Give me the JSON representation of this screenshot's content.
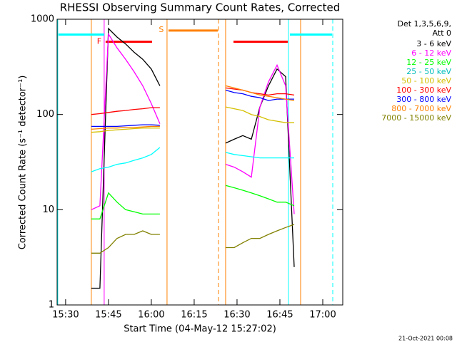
{
  "chart_data": {
    "type": "line",
    "title": "RHESSI Observing Summary Count Rates, Corrected",
    "x_label": "Start Time (04-May-12 15:27:02)",
    "y_label": "Corrected Count Rate (s⁻¹ detector⁻¹)",
    "legend_title": [
      "Det 1,3,5,6,9,",
      "Att 0"
    ],
    "footer": "21-Oct-2021 00:08",
    "log_y": true,
    "xlim": [
      927.03,
      1027
    ],
    "xticks": [
      {
        "value": 930,
        "label": "15:30"
      },
      {
        "value": 945,
        "label": "15:45"
      },
      {
        "value": 960,
        "label": "16:00"
      },
      {
        "value": 975,
        "label": "16:15"
      },
      {
        "value": 990,
        "label": "16:30"
      },
      {
        "value": 1005,
        "label": "16:45"
      },
      {
        "value": 1020,
        "label": "17:00"
      }
    ],
    "ylim": [
      1,
      1000
    ],
    "yticks": [
      1,
      10,
      100,
      1000
    ],
    "x": [
      939,
      942,
      945,
      948,
      951,
      954,
      957,
      960,
      963,
      975,
      986,
      989,
      992,
      995,
      998,
      1001,
      1004,
      1007,
      1010
    ],
    "series": [
      {
        "name": "3 - 6 keV",
        "color": "#000000",
        "values": [
          1.5,
          1.5,
          800,
          650,
          550,
          450,
          380,
          300,
          200,
          null,
          50,
          55,
          60,
          55,
          120,
          200,
          300,
          250,
          2.5
        ]
      },
      {
        "name": "6 - 12 keV",
        "color": "#ff00ff",
        "values": [
          10,
          11,
          700,
          500,
          380,
          280,
          200,
          130,
          80,
          null,
          30,
          28,
          25,
          22,
          120,
          220,
          330,
          200,
          9
        ]
      },
      {
        "name": "12 - 25 keV",
        "color": "#00ff00",
        "values": [
          8,
          8,
          15,
          12,
          10,
          9.5,
          9,
          9,
          9,
          null,
          18,
          17,
          16,
          15,
          14,
          13,
          12,
          12,
          11
        ]
      },
      {
        "name": "25 - 50 keV",
        "color": "#00ffff",
        "values": [
          25,
          27,
          28,
          30,
          31,
          33,
          35,
          38,
          45,
          null,
          40,
          38,
          37,
          36,
          35,
          35,
          35,
          35,
          35
        ]
      },
      {
        "name": "50 - 100 keV",
        "color": "#d4c000",
        "values": [
          65,
          66,
          68,
          69,
          70,
          71,
          72,
          72,
          72,
          null,
          120,
          115,
          110,
          100,
          95,
          88,
          85,
          82,
          82
        ]
      },
      {
        "name": "100 - 300 keV",
        "color": "#ff0000",
        "values": [
          100,
          102,
          105,
          108,
          110,
          113,
          115,
          118,
          118,
          null,
          190,
          185,
          180,
          170,
          165,
          160,
          165,
          165,
          160
        ]
      },
      {
        "name": "300 - 800 keV",
        "color": "#0000ff",
        "values": [
          75,
          75,
          75,
          75,
          76,
          77,
          78,
          78,
          77,
          null,
          180,
          170,
          165,
          155,
          150,
          140,
          145,
          145,
          145
        ]
      },
      {
        "name": "800 - 7000 keV",
        "color": "#ff8000",
        "values": [
          70,
          71,
          72,
          72,
          73,
          73,
          74,
          75,
          75,
          null,
          200,
          190,
          180,
          170,
          160,
          155,
          150,
          145,
          140
        ]
      },
      {
        "name": "7000 - 15000 keV",
        "color": "#808000",
        "values": [
          3.5,
          3.5,
          4,
          5,
          5.5,
          5.5,
          6,
          5.5,
          5.5,
          null,
          4,
          4,
          4.5,
          5,
          5,
          5.5,
          6,
          6.5,
          7
        ]
      }
    ],
    "flag_bars": [
      {
        "start": 927.5,
        "end": 943.5,
        "level": 690,
        "color": "#00ffff"
      },
      {
        "label": "F",
        "start": 944,
        "end": 960.25,
        "level": 580,
        "color": "#ff0000"
      },
      {
        "label": "S",
        "start": 966,
        "end": 983.25,
        "level": 760,
        "color": "#ff8000"
      },
      {
        "start": 988.75,
        "end": 1007.75,
        "level": 580,
        "color": "#ff0000"
      },
      {
        "start": 1008.5,
        "end": 1023.25,
        "level": 690,
        "color": "#00ffff"
      }
    ],
    "vlines": [
      {
        "x": 927.25,
        "color": "#00ffff",
        "dashed": false
      },
      {
        "x": 939,
        "color": "#ff8000",
        "dashed": false
      },
      {
        "x": 943.5,
        "color": "#ff00ff",
        "dashed": false
      },
      {
        "x": 965.5,
        "color": "#ff8000",
        "dashed": false
      },
      {
        "x": 983.5,
        "color": "#ff8000",
        "dashed": true
      },
      {
        "x": 986,
        "color": "#ff8000",
        "dashed": false
      },
      {
        "x": 1008,
        "color": "#00ffff",
        "dashed": false
      },
      {
        "x": 1012.25,
        "color": "#ff8000",
        "dashed": false
      },
      {
        "x": 1023.5,
        "color": "#00ffff",
        "dashed": true
      }
    ]
  }
}
